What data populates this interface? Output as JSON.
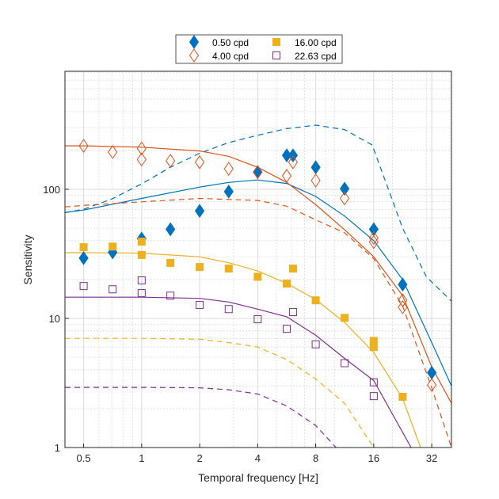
{
  "chart_data": {
    "type": "scatter",
    "title": "",
    "xlabel": "Temporal frequency [Hz]",
    "ylabel": "Sensitivity",
    "xscale": "log",
    "yscale": "log",
    "xlim": [
      0.4,
      40.5
    ],
    "ylim": [
      1,
      820
    ],
    "grid": true,
    "xticks": [
      0.5,
      1,
      2,
      4,
      8,
      16,
      32
    ],
    "xtick_labels": [
      "0.5",
      "1",
      "2",
      "4",
      "8",
      "16",
      "32"
    ],
    "yticks": [
      1,
      10,
      100
    ],
    "ytick_labels": [
      "1",
      "10",
      "100"
    ],
    "legend": {
      "placement": "top-center",
      "columns": 2
    },
    "series": [
      {
        "name": "0.50 cpd",
        "color": "#0072BD",
        "marker": "diamond-filled",
        "x": [
          0.5,
          0.707,
          1,
          1.41,
          2,
          2.83,
          4,
          5.66,
          6.1,
          8,
          11.3,
          16,
          22.6,
          32
        ],
        "y": [
          29.3,
          32.5,
          41.5,
          49,
          68,
          96,
          136,
          183,
          183,
          148,
          101,
          49,
          18.3,
          3.8
        ],
        "fit_solid": {
          "x": [
            0.4,
            0.5,
            1,
            2,
            2.83,
            4,
            5.66,
            8,
            11.3,
            16,
            22.6,
            32,
            40.5
          ],
          "y": [
            66,
            69,
            85,
            104,
            113,
            118,
            111,
            88,
            62,
            40,
            20,
            6.5,
            3.0
          ]
        },
        "fit_dashed": {
          "x": [
            0.4,
            0.5,
            0.7,
            1,
            1.41,
            2,
            2.83,
            4,
            5.66,
            8,
            11.3,
            15.7,
            22.6,
            30,
            40.5
          ],
          "y": [
            66,
            70,
            84,
            110,
            148,
            190,
            230,
            262,
            295,
            314,
            290,
            220,
            50,
            21,
            13.6
          ]
        }
      },
      {
        "name": "4.00 cpd",
        "color": "#D95319",
        "marker": "diamond-open",
        "x": [
          0.5,
          0.707,
          1,
          1,
          1.41,
          2,
          2.83,
          4,
          5.66,
          6.1,
          8,
          11.3,
          16,
          16,
          22.6,
          22.6,
          32
        ],
        "y": [
          217,
          194,
          207,
          170,
          166,
          162,
          144,
          136,
          127,
          162,
          117,
          85,
          42,
          39,
          13.8,
          12.2,
          3.05
        ],
        "fit_solid": {
          "x": [
            0.4,
            0.5,
            1,
            2,
            2.83,
            4,
            5.66,
            8,
            11.3,
            16,
            22.6,
            32,
            40.5
          ],
          "y": [
            217,
            217,
            212,
            198,
            180,
            148,
            113,
            76,
            48.6,
            30,
            15,
            4.2,
            2.2
          ]
        },
        "fit_dashed": {
          "x": [
            0.4,
            0.5,
            1,
            2,
            4,
            5.66,
            8,
            11.3,
            16,
            22.6,
            32,
            40.5
          ],
          "y": [
            73,
            75,
            80,
            85,
            82,
            74,
            58,
            46,
            29,
            12.5,
            2.9,
            1.0
          ]
        }
      },
      {
        "name": "16.00 cpd",
        "color": "#EDB120",
        "marker": "square-filled",
        "x": [
          0.5,
          0.707,
          1,
          1,
          1.41,
          2,
          2.83,
          4,
          5.66,
          6.1,
          8,
          11.3,
          16,
          16,
          22.6
        ],
        "y": [
          35.6,
          36,
          39.3,
          31,
          26.9,
          25,
          24.3,
          21,
          18.6,
          24.3,
          13.8,
          10.1,
          6.7,
          6.0,
          2.47
        ],
        "fit_solid": {
          "x": [
            0.4,
            0.5,
            1,
            2,
            2.83,
            4,
            5.66,
            8,
            11.3,
            16,
            22.6,
            28
          ],
          "y": [
            32.3,
            32.3,
            32,
            30,
            27,
            23.3,
            18.7,
            14,
            9.3,
            5.45,
            2.4,
            1.0
          ]
        },
        "fit_dashed": {
          "x": [
            0.4,
            0.5,
            1,
            2,
            2.83,
            4,
            5.66,
            8,
            11.3,
            16
          ],
          "y": [
            7.0,
            7.0,
            7.0,
            6.9,
            6.5,
            6.0,
            4.8,
            3.4,
            2.2,
            1.0
          ]
        }
      },
      {
        "name": "22.63 cpd",
        "color": "#7E2F8E",
        "marker": "square-open",
        "x": [
          0.5,
          0.707,
          1,
          1,
          1.41,
          2,
          2.83,
          4,
          5.66,
          6.1,
          8,
          11.3,
          16,
          16
        ],
        "y": [
          17.8,
          16.8,
          19.7,
          15.7,
          15.0,
          12.7,
          11.8,
          9.85,
          8.3,
          11.2,
          6.3,
          4.5,
          3.2,
          2.5
        ],
        "fit_solid": {
          "x": [
            0.4,
            0.5,
            1,
            2,
            2.83,
            4,
            5.66,
            8,
            11.3,
            16,
            25
          ],
          "y": [
            14.6,
            14.6,
            14.6,
            14.3,
            13.4,
            11.8,
            10.3,
            7.4,
            4.9,
            3.3,
            1.0
          ]
        },
        "fit_dashed": {
          "x": [
            0.4,
            0.5,
            1,
            2,
            2.83,
            4,
            5.66,
            8,
            10.2
          ],
          "y": [
            2.92,
            2.92,
            2.92,
            2.9,
            2.8,
            2.6,
            2.1,
            1.48,
            1.0
          ]
        }
      }
    ]
  }
}
